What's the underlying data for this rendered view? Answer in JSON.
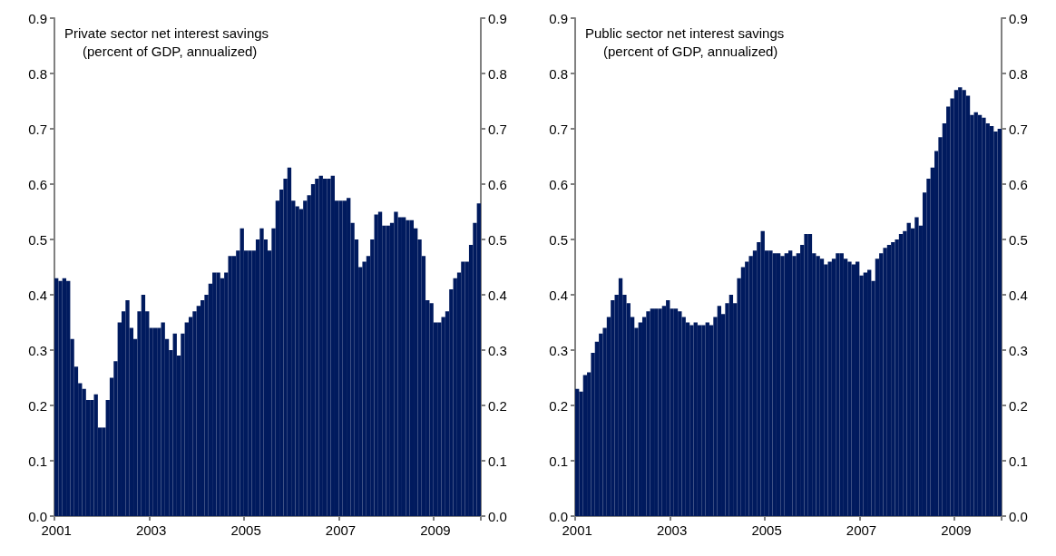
{
  "chart_data": [
    {
      "type": "bar",
      "title": "Private sector net interest savings",
      "subtitle": "(percent of GDP, annualized)",
      "categories": [
        "2001",
        null,
        null,
        null,
        null,
        null,
        null,
        null,
        null,
        null,
        null,
        null,
        null,
        null,
        null,
        null,
        null,
        null,
        null,
        null,
        null,
        null,
        null,
        null,
        "2003",
        null,
        null,
        null,
        null,
        null,
        null,
        null,
        null,
        null,
        null,
        null,
        null,
        null,
        null,
        null,
        null,
        null,
        null,
        null,
        null,
        null,
        null,
        null,
        "2005",
        null,
        null,
        null,
        null,
        null,
        null,
        null,
        null,
        null,
        null,
        null,
        null,
        null,
        null,
        null,
        null,
        null,
        null,
        null,
        null,
        null,
        null,
        null,
        "2007",
        null,
        null,
        null,
        null,
        null,
        null,
        null,
        null,
        null,
        null,
        null,
        null,
        null,
        null,
        null,
        null,
        null,
        null,
        null,
        null,
        null,
        null,
        null,
        "2009",
        null,
        null,
        null,
        null,
        null,
        null,
        null,
        null,
        null,
        null,
        null
      ],
      "series": [
        {
          "color": "#001a5e",
          "values": [
            0.43,
            0.425,
            0.43,
            0.425,
            0.32,
            0.27,
            0.24,
            0.23,
            0.21,
            0.21,
            0.22,
            0.16,
            0.16,
            0.21,
            0.25,
            0.28,
            0.35,
            0.37,
            0.39,
            0.34,
            0.32,
            0.37,
            0.4,
            0.37,
            0.34,
            0.34,
            0.34,
            0.35,
            0.32,
            0.3,
            0.33,
            0.29,
            0.33,
            0.35,
            0.36,
            0.37,
            0.38,
            0.39,
            0.4,
            0.42,
            0.44,
            0.44,
            0.43,
            0.44,
            0.47,
            0.47,
            0.48,
            0.52,
            0.48,
            0.48,
            0.48,
            0.5,
            0.52,
            0.5,
            0.48,
            0.52,
            0.57,
            0.59,
            0.61,
            0.63,
            0.57,
            0.56,
            0.555,
            0.57,
            0.58,
            0.6,
            0.61,
            0.615,
            0.61,
            0.61,
            0.615,
            0.57,
            0.57,
            0.57,
            0.575,
            0.53,
            0.5,
            0.45,
            0.46,
            0.47,
            0.5,
            0.545,
            0.55,
            0.525,
            0.525,
            0.53,
            0.55,
            0.54,
            0.54,
            0.535,
            0.535,
            0.52,
            0.5,
            0.47,
            0.39,
            0.385,
            0.35,
            0.35,
            0.36,
            0.37,
            0.41,
            0.43,
            0.44,
            0.46,
            0.46,
            0.49,
            0.53,
            0.565
          ]
        }
      ],
      "ylim": [
        0,
        0.9
      ],
      "yticks": [
        {
          "value": 0,
          "label": "0.0"
        },
        {
          "value": 0.1,
          "label": "0.1"
        },
        {
          "value": 0.2,
          "label": "0.2"
        },
        {
          "value": 0.3,
          "label": "0.3"
        },
        {
          "value": 0.4,
          "label": "0.4"
        },
        {
          "value": 0.5,
          "label": "0.5"
        },
        {
          "value": 0.6,
          "label": "0.6"
        },
        {
          "value": 0.7,
          "label": "0.7"
        },
        {
          "value": 0.8,
          "label": "0.8"
        },
        {
          "value": 0.9,
          "label": "0.9"
        }
      ],
      "y2lim": [
        0,
        0.9
      ],
      "y2ticks": [
        {
          "value": 0,
          "label": "0.0"
        },
        {
          "value": 0.1,
          "label": "0.1"
        },
        {
          "value": 0.2,
          "label": "0.2"
        },
        {
          "value": 0.3,
          "label": "0.3"
        },
        {
          "value": 0.4,
          "label": "0.4"
        },
        {
          "value": 0.5,
          "label": "0.5"
        },
        {
          "value": 0.6,
          "label": "0.6"
        },
        {
          "value": 0.7,
          "label": "0.7"
        },
        {
          "value": 0.8,
          "label": "0.8"
        },
        {
          "value": 0.9,
          "label": "0.9"
        }
      ],
      "grid": false
    },
    {
      "type": "bar",
      "title": "Public sector net interest savings",
      "subtitle": "(percent of GDP, annualized)",
      "categories": [
        "2001",
        null,
        null,
        null,
        null,
        null,
        null,
        null,
        null,
        null,
        null,
        null,
        null,
        null,
        null,
        null,
        null,
        null,
        null,
        null,
        null,
        null,
        null,
        null,
        "2003",
        null,
        null,
        null,
        null,
        null,
        null,
        null,
        null,
        null,
        null,
        null,
        null,
        null,
        null,
        null,
        null,
        null,
        null,
        null,
        null,
        null,
        null,
        null,
        "2005",
        null,
        null,
        null,
        null,
        null,
        null,
        null,
        null,
        null,
        null,
        null,
        null,
        null,
        null,
        null,
        null,
        null,
        null,
        null,
        null,
        null,
        null,
        null,
        "2007",
        null,
        null,
        null,
        null,
        null,
        null,
        null,
        null,
        null,
        null,
        null,
        null,
        null,
        null,
        null,
        null,
        null,
        null,
        null,
        null,
        null,
        null,
        null,
        "2009",
        null,
        null,
        null,
        null,
        null,
        null,
        null,
        null,
        null,
        null,
        null
      ],
      "series": [
        {
          "color": "#001a5e",
          "values": [
            0.23,
            0.225,
            0.255,
            0.26,
            0.295,
            0.315,
            0.33,
            0.34,
            0.36,
            0.39,
            0.4,
            0.43,
            0.4,
            0.385,
            0.36,
            0.34,
            0.35,
            0.36,
            0.37,
            0.375,
            0.375,
            0.375,
            0.38,
            0.39,
            0.375,
            0.375,
            0.37,
            0.36,
            0.35,
            0.345,
            0.35,
            0.345,
            0.345,
            0.35,
            0.345,
            0.36,
            0.38,
            0.365,
            0.385,
            0.4,
            0.385,
            0.43,
            0.45,
            0.46,
            0.47,
            0.48,
            0.495,
            0.515,
            0.48,
            0.48,
            0.475,
            0.475,
            0.47,
            0.475,
            0.48,
            0.47,
            0.475,
            0.49,
            0.51,
            0.51,
            0.475,
            0.47,
            0.465,
            0.455,
            0.46,
            0.465,
            0.475,
            0.475,
            0.465,
            0.46,
            0.455,
            0.46,
            0.435,
            0.44,
            0.445,
            0.425,
            0.465,
            0.475,
            0.485,
            0.49,
            0.495,
            0.5,
            0.51,
            0.515,
            0.53,
            0.52,
            0.54,
            0.525,
            0.585,
            0.61,
            0.63,
            0.66,
            0.685,
            0.71,
            0.74,
            0.755,
            0.77,
            0.775,
            0.77,
            0.76,
            0.725,
            0.73,
            0.725,
            0.72,
            0.71,
            0.705,
            0.695,
            0.7
          ]
        }
      ],
      "ylim": [
        0,
        0.9
      ],
      "yticks": [
        {
          "value": 0,
          "label": "0.0"
        },
        {
          "value": 0.1,
          "label": "0.1"
        },
        {
          "value": 0.2,
          "label": "0.2"
        },
        {
          "value": 0.3,
          "label": "0.3"
        },
        {
          "value": 0.4,
          "label": "0.4"
        },
        {
          "value": 0.5,
          "label": "0.5"
        },
        {
          "value": 0.6,
          "label": "0.6"
        },
        {
          "value": 0.7,
          "label": "0.7"
        },
        {
          "value": 0.8,
          "label": "0.8"
        },
        {
          "value": 0.9,
          "label": "0.9"
        }
      ],
      "y2lim": [
        0,
        0.9
      ],
      "y2ticks": [
        {
          "value": 0,
          "label": "0.0"
        },
        {
          "value": 0.1,
          "label": "0.1"
        },
        {
          "value": 0.2,
          "label": "0.2"
        },
        {
          "value": 0.3,
          "label": "0.3"
        },
        {
          "value": 0.4,
          "label": "0.4"
        },
        {
          "value": 0.5,
          "label": "0.5"
        },
        {
          "value": 0.6,
          "label": "0.6"
        },
        {
          "value": 0.7,
          "label": "0.7"
        },
        {
          "value": 0.8,
          "label": "0.8"
        },
        {
          "value": 0.9,
          "label": "0.9"
        }
      ],
      "grid": false
    }
  ]
}
